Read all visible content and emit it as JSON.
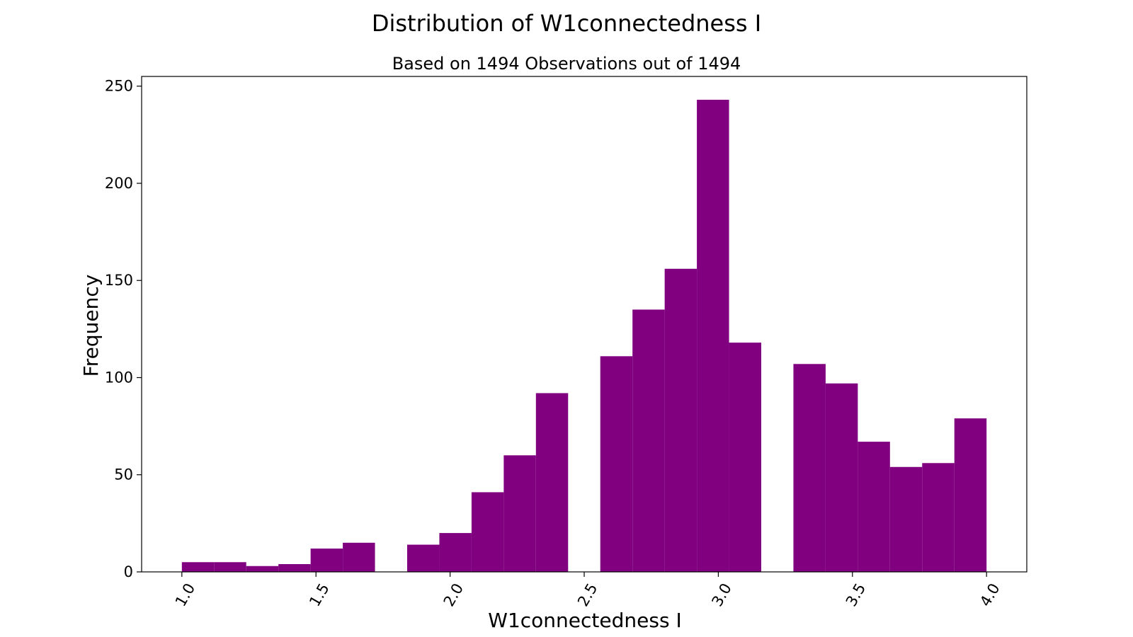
{
  "chart_data": {
    "type": "bar",
    "title": "Distribution of W1connectedness I",
    "subtitle": "Based on 1494 Observations out of 1494",
    "xlabel": "W1connectedness I",
    "ylabel": "Frequency",
    "bar_color": "#800080",
    "xlim": [
      0.85,
      4.15
    ],
    "ylim": [
      0,
      255
    ],
    "grid": false,
    "xticks": [
      1.0,
      1.5,
      2.0,
      2.5,
      3.0,
      3.5,
      4.0
    ],
    "xtick_labels": [
      "1.0",
      "1.5",
      "2.0",
      "2.5",
      "3.0",
      "3.5",
      "4.0"
    ],
    "yticks": [
      0,
      50,
      100,
      150,
      200,
      250
    ],
    "ytick_labels": [
      "0",
      "50",
      "100",
      "150",
      "200",
      "250"
    ],
    "bins": [
      {
        "x0": 1.0,
        "x1": 1.12,
        "count": 5
      },
      {
        "x0": 1.12,
        "x1": 1.24,
        "count": 5
      },
      {
        "x0": 1.24,
        "x1": 1.36,
        "count": 3
      },
      {
        "x0": 1.36,
        "x1": 1.48,
        "count": 4
      },
      {
        "x0": 1.48,
        "x1": 1.6,
        "count": 12
      },
      {
        "x0": 1.6,
        "x1": 1.72,
        "count": 15
      },
      {
        "x0": 1.72,
        "x1": 1.84,
        "count": 0
      },
      {
        "x0": 1.84,
        "x1": 1.96,
        "count": 14
      },
      {
        "x0": 1.96,
        "x1": 2.08,
        "count": 20
      },
      {
        "x0": 2.08,
        "x1": 2.2,
        "count": 41
      },
      {
        "x0": 2.2,
        "x1": 2.32,
        "count": 60
      },
      {
        "x0": 2.32,
        "x1": 2.44,
        "count": 92
      },
      {
        "x0": 2.44,
        "x1": 2.56,
        "count": 0
      },
      {
        "x0": 2.56,
        "x1": 2.68,
        "count": 111
      },
      {
        "x0": 2.68,
        "x1": 2.8,
        "count": 135
      },
      {
        "x0": 2.8,
        "x1": 2.92,
        "count": 156
      },
      {
        "x0": 2.92,
        "x1": 3.04,
        "count": 243
      },
      {
        "x0": 3.04,
        "x1": 3.16,
        "count": 118
      },
      {
        "x0": 3.16,
        "x1": 3.28,
        "count": 0
      },
      {
        "x0": 3.28,
        "x1": 3.4,
        "count": 107
      },
      {
        "x0": 3.4,
        "x1": 3.52,
        "count": 97
      },
      {
        "x0": 3.52,
        "x1": 3.64,
        "count": 67
      },
      {
        "x0": 3.64,
        "x1": 3.76,
        "count": 54
      },
      {
        "x0": 3.76,
        "x1": 3.88,
        "count": 56
      },
      {
        "x0": 3.88,
        "x1": 4.0,
        "count": 79
      }
    ]
  }
}
